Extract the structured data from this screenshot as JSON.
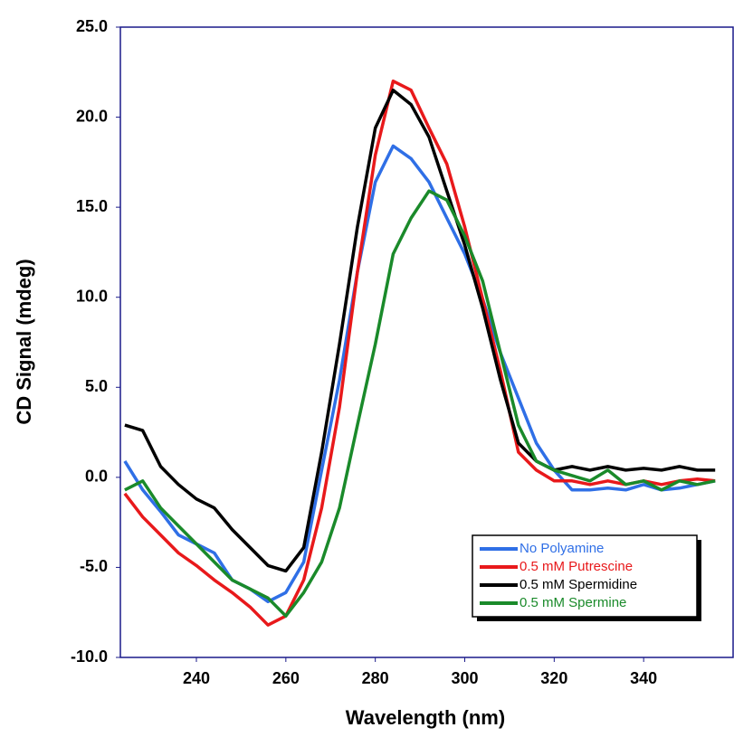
{
  "chart_data": {
    "type": "line",
    "x_label": "Wavelength (nm)",
    "y_label": "CD Signal (mdeg)",
    "x": [
      224,
      228,
      232,
      236,
      240,
      244,
      248,
      252,
      256,
      260,
      264,
      268,
      272,
      276,
      280,
      284,
      288,
      292,
      296,
      300,
      304,
      308,
      312,
      316,
      320,
      324,
      328,
      332,
      336,
      340,
      344,
      348,
      352,
      356
    ],
    "series": [
      {
        "name": "No Polyamine",
        "color": "#2f6fe6",
        "values": [
          0.9,
          -0.7,
          -1.9,
          -3.2,
          -3.7,
          -4.2,
          -5.7,
          -6.2,
          -6.9,
          -6.4,
          -4.7,
          0.4,
          5.4,
          11.4,
          16.4,
          18.4,
          17.7,
          16.4,
          14.4,
          12.4,
          9.9,
          6.9,
          4.4,
          1.9,
          0.4,
          -0.7,
          -0.7,
          -0.6,
          -0.7,
          -0.4,
          -0.7,
          -0.6,
          -0.4,
          -0.2
        ]
      },
      {
        "name": "0.5 mM Putrescine",
        "color": "#e8191b",
        "values": [
          -0.9,
          -2.2,
          -3.2,
          -4.2,
          -4.9,
          -5.7,
          -6.4,
          -7.2,
          -8.2,
          -7.7,
          -5.7,
          -1.7,
          3.9,
          11.4,
          17.9,
          22.0,
          21.5,
          19.4,
          17.4,
          13.9,
          9.9,
          5.9,
          1.4,
          0.4,
          -0.2,
          -0.2,
          -0.4,
          -0.2,
          -0.4,
          -0.2,
          -0.4,
          -0.2,
          -0.1,
          -0.2
        ]
      },
      {
        "name": "0.5 mM Spermidine",
        "color": "#000000",
        "values": [
          2.9,
          2.6,
          0.6,
          -0.4,
          -1.2,
          -1.7,
          -2.9,
          -3.9,
          -4.9,
          -5.2,
          -3.9,
          1.4,
          7.4,
          13.9,
          19.4,
          21.5,
          20.7,
          18.9,
          15.9,
          12.9,
          9.4,
          5.4,
          1.9,
          0.9,
          0.4,
          0.6,
          0.4,
          0.6,
          0.4,
          0.5,
          0.4,
          0.6,
          0.4,
          0.4
        ]
      },
      {
        "name": "0.5 mM Spermine",
        "color": "#1a8a2a",
        "values": [
          -0.7,
          -0.2,
          -1.7,
          -2.7,
          -3.7,
          -4.7,
          -5.7,
          -6.2,
          -6.7,
          -7.7,
          -6.4,
          -4.7,
          -1.7,
          2.9,
          7.4,
          12.4,
          14.4,
          15.9,
          15.4,
          13.4,
          10.9,
          6.9,
          2.9,
          0.9,
          0.4,
          0.1,
          -0.2,
          0.4,
          -0.4,
          -0.2,
          -0.7,
          -0.2,
          -0.4,
          -0.2
        ]
      }
    ],
    "xlim": [
      223,
      360
    ],
    "xticks": [
      240,
      260,
      280,
      300,
      320,
      340
    ],
    "ylim": [
      -10,
      25
    ],
    "yticks": [
      {
        "value": -10,
        "label": "-10.0"
      },
      {
        "value": -5,
        "label": "-5.0"
      },
      {
        "value": 0,
        "label": "0.0"
      },
      {
        "value": 5,
        "label": "5.0"
      },
      {
        "value": 10,
        "label": "10.0"
      },
      {
        "value": 15,
        "label": "15.0"
      },
      {
        "value": 20,
        "label": "20.0"
      },
      {
        "value": 25,
        "label": "25.0"
      }
    ],
    "legend": "lower right",
    "frame_color": "#1a1a8a"
  }
}
